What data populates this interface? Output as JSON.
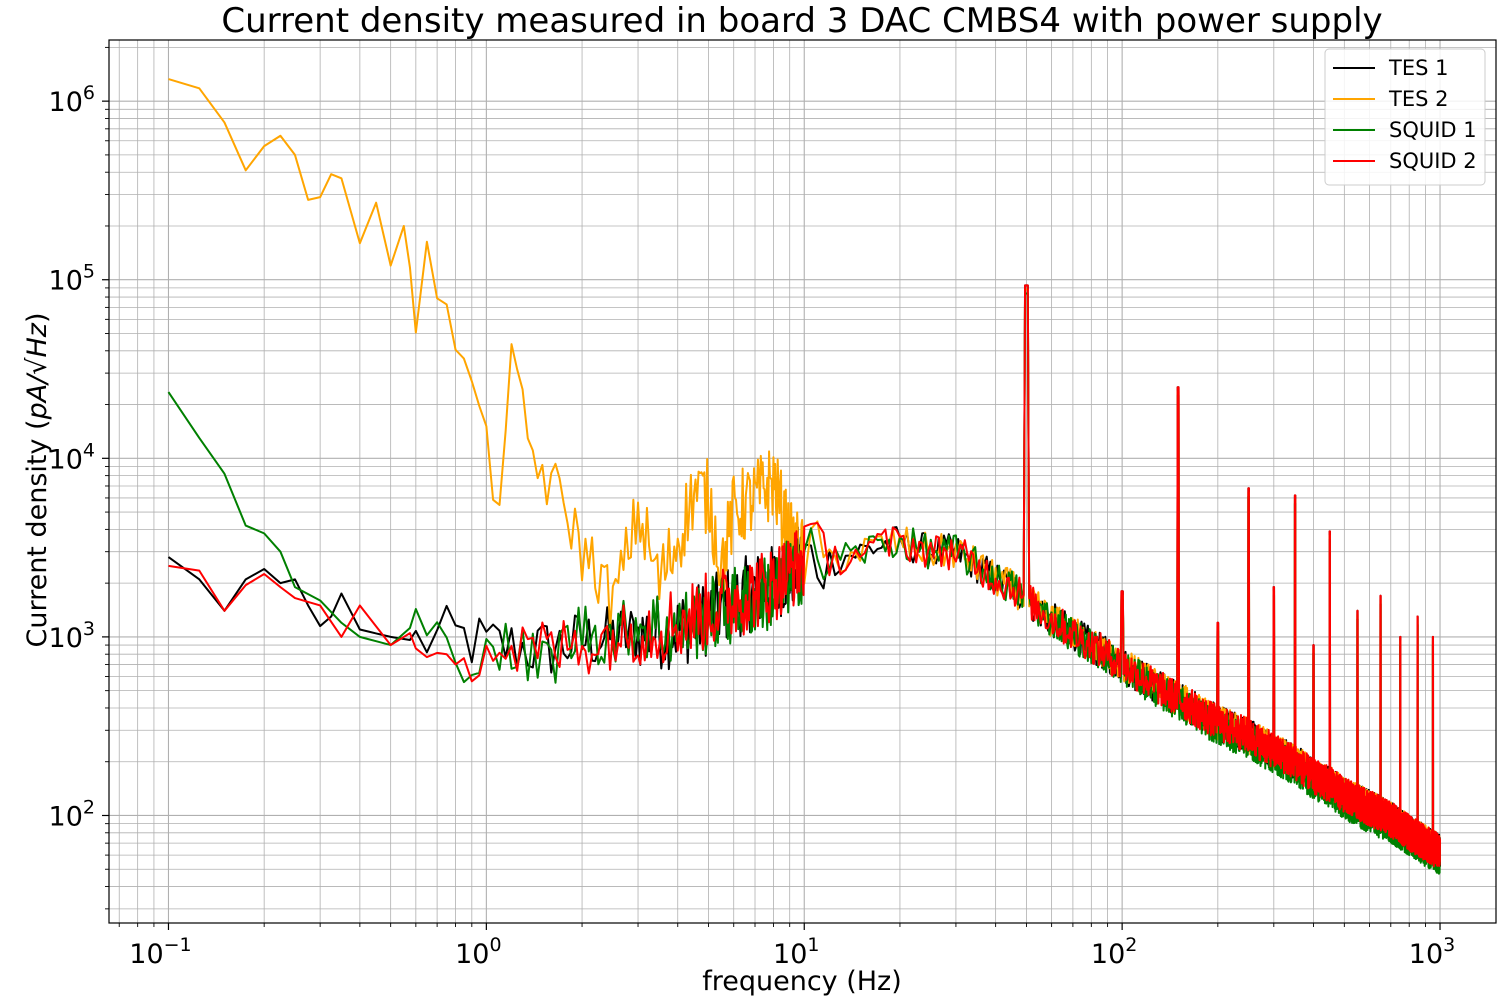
{
  "chart_data": {
    "type": "line",
    "title": "Current density measured in board 3 DAC CMBS4 with power supply",
    "xlabel": "frequency (Hz)",
    "ylabel_prefix": "Current density (",
    "ylabel_math": "pA/√Hz",
    "ylabel_suffix": ")",
    "xscale": "log",
    "yscale": "log",
    "xlim": [
      0.065,
      1500
    ],
    "ylim": [
      25,
      2200000
    ],
    "x_ticks": [
      {
        "value": 0.1,
        "label": "10^-1"
      },
      {
        "value": 1,
        "label": "10^0"
      },
      {
        "value": 10,
        "label": "10^1"
      },
      {
        "value": 100,
        "label": "10^2"
      },
      {
        "value": 1000,
        "label": "10^3"
      }
    ],
    "y_ticks": [
      {
        "value": 100,
        "label": "10^2"
      },
      {
        "value": 1000,
        "label": "10^3"
      },
      {
        "value": 10000,
        "label": "10^4"
      },
      {
        "value": 100000,
        "label": "10^5"
      },
      {
        "value": 1000000,
        "label": "10^6"
      }
    ],
    "grid": true,
    "legend_position": "top-right",
    "series": [
      {
        "name": "TES 1",
        "color": "#000000",
        "x": [
          0.1,
          0.125,
          0.15,
          0.175,
          0.2,
          0.225,
          0.25,
          0.275,
          0.3,
          0.325,
          0.35,
          0.4,
          0.5,
          0.6,
          0.8,
          1.0,
          1.5,
          2.0,
          2.5,
          3.0,
          4.0,
          5.0,
          6.0,
          8.0,
          10.0,
          12.0,
          15.0,
          18.0,
          20.0,
          25.0,
          30.0,
          35.0,
          40.0,
          45.0,
          50.0,
          55.0,
          60.0,
          80.0,
          100.0,
          130.0,
          150.0,
          200.0,
          250.0,
          300.0,
          350.0,
          400.0,
          450.0,
          500.0,
          600.0,
          700.0,
          800.0,
          900.0,
          1000.0
        ],
        "y": [
          2800,
          2100,
          1400,
          2100,
          2400,
          2000,
          2100,
          1500,
          1150,
          1300,
          1750,
          1100,
          1000,
          950,
          1000,
          900,
          850,
          950,
          1000,
          1050,
          1100,
          1300,
          1600,
          2000,
          2700,
          2700,
          3000,
          3300,
          3400,
          3000,
          3000,
          2500,
          2100,
          1900,
          1650,
          1400,
          1250,
          900,
          700,
          520,
          450,
          330,
          280,
          230,
          200,
          165,
          150,
          130,
          110,
          95,
          80,
          70,
          62
        ]
      },
      {
        "name": "TES 2",
        "color": "#ffa500",
        "x": [
          0.1,
          0.125,
          0.15,
          0.175,
          0.2,
          0.225,
          0.25,
          0.275,
          0.3,
          0.325,
          0.35,
          0.4,
          0.45,
          0.5,
          0.55,
          0.6,
          0.65,
          0.7,
          0.75,
          0.8,
          0.9,
          1.0,
          1.1,
          1.2,
          1.4,
          1.6,
          1.8,
          2.0,
          2.2,
          2.5,
          3.0,
          3.5,
          4.0,
          4.5,
          5.0,
          5.5,
          6.0,
          7.0,
          8.0,
          9.0,
          10.0,
          12.0,
          15.0,
          18.0,
          20.0,
          25.0,
          30.0,
          35.0,
          40.0,
          45.0,
          50.0,
          55.0,
          60.0,
          80.0,
          100.0,
          130.0,
          150.0,
          200.0,
          250.0,
          300.0,
          350.0,
          400.0,
          450.0,
          500.0,
          600.0,
          700.0,
          800.0,
          900.0,
          1000.0
        ],
        "y": [
          1330000,
          1180000,
          760000,
          410000,
          560000,
          640000,
          500000,
          280000,
          290000,
          390000,
          370000,
          160000,
          270000,
          120000,
          200000,
          70000,
          150000,
          60000,
          100000,
          30000,
          30000,
          10000,
          7000,
          30000,
          10000,
          7000,
          5000,
          3000,
          2500,
          1500,
          5000,
          2000,
          3500,
          6500,
          6000,
          2500,
          5000,
          6000,
          7500,
          3500,
          2800,
          2700,
          3000,
          3300,
          3400,
          3000,
          3000,
          2500,
          2100,
          1900,
          1650,
          1400,
          1250,
          900,
          700,
          520,
          450,
          330,
          280,
          230,
          200,
          165,
          150,
          130,
          110,
          95,
          80,
          70,
          62
        ]
      },
      {
        "name": "SQUID 1",
        "color": "#008000",
        "x": [
          0.1,
          0.125,
          0.15,
          0.175,
          0.2,
          0.225,
          0.25,
          0.3,
          0.35,
          0.4,
          0.5,
          0.6,
          0.7,
          0.8,
          0.9,
          1.0,
          1.2,
          1.5,
          2.0,
          2.5,
          3.0,
          4.0,
          5.0,
          6.0,
          8.0,
          10.0,
          12.0,
          15.0,
          18.0,
          20.0,
          25.0,
          30.0,
          35.0,
          40.0,
          45.0,
          50.0,
          55.0,
          60.0,
          80.0,
          100.0,
          130.0,
          150.0,
          200.0,
          250.0,
          300.0,
          350.0,
          400.0,
          450.0,
          500.0,
          600.0,
          700.0,
          800.0,
          900.0,
          1000.0
        ],
        "y": [
          23500,
          13000,
          8200,
          4200,
          3800,
          3000,
          1900,
          1600,
          1200,
          1000,
          900,
          1200,
          1000,
          550,
          900,
          1000,
          800,
          700,
          1100,
          1000,
          1200,
          1100,
          1300,
          1500,
          1800,
          2600,
          2700,
          3000,
          3300,
          3400,
          3000,
          3000,
          2500,
          2100,
          1900,
          1650,
          1400,
          1250,
          880,
          680,
          500,
          430,
          310,
          260,
          215,
          185,
          155,
          140,
          120,
          100,
          88,
          75,
          65,
          58
        ]
      },
      {
        "name": "SQUID 2",
        "color": "#ff0000",
        "x": [
          0.1,
          0.125,
          0.15,
          0.175,
          0.2,
          0.225,
          0.25,
          0.3,
          0.35,
          0.4,
          0.5,
          0.6,
          0.7,
          0.8,
          0.9,
          1.0,
          1.2,
          1.5,
          2.0,
          2.5,
          3.0,
          4.0,
          5.0,
          6.0,
          8.0,
          10.0,
          12.0,
          15.0,
          18.0,
          20.0,
          25.0,
          30.0,
          35.0,
          40.0,
          45.0,
          50.0,
          55.0,
          60.0,
          80.0,
          100.0,
          130.0,
          150.0,
          200.0,
          250.0,
          300.0,
          350.0,
          400.0,
          450.0,
          500.0,
          600.0,
          700.0,
          800.0,
          900.0,
          1000.0
        ],
        "y": [
          2500,
          2350,
          1400,
          1950,
          2250,
          1900,
          1650,
          1500,
          1000,
          1500,
          900,
          1100,
          950,
          1000,
          800,
          850,
          850,
          850,
          900,
          1000,
          1100,
          1200,
          1400,
          1600,
          2000,
          2700,
          2700,
          3000,
          3300,
          3400,
          3000,
          3000,
          2500,
          2100,
          1900,
          1650,
          1400,
          1250,
          900,
          700,
          520,
          450,
          330,
          280,
          230,
          200,
          165,
          150,
          130,
          110,
          95,
          80,
          70,
          62
        ]
      }
    ],
    "spikes": [
      {
        "x": 50,
        "y": 93000
      },
      {
        "x": 100,
        "y": 1800
      },
      {
        "x": 150,
        "y": 25000
      },
      {
        "x": 200,
        "y": 1200
      },
      {
        "x": 250,
        "y": 6800
      },
      {
        "x": 300,
        "y": 1900
      },
      {
        "x": 350,
        "y": 6200
      },
      {
        "x": 400,
        "y": 900
      },
      {
        "x": 450,
        "y": 3900
      },
      {
        "x": 550,
        "y": 1400
      },
      {
        "x": 650,
        "y": 1700
      },
      {
        "x": 750,
        "y": 1000
      },
      {
        "x": 850,
        "y": 1300
      },
      {
        "x": 950,
        "y": 1000
      }
    ]
  }
}
